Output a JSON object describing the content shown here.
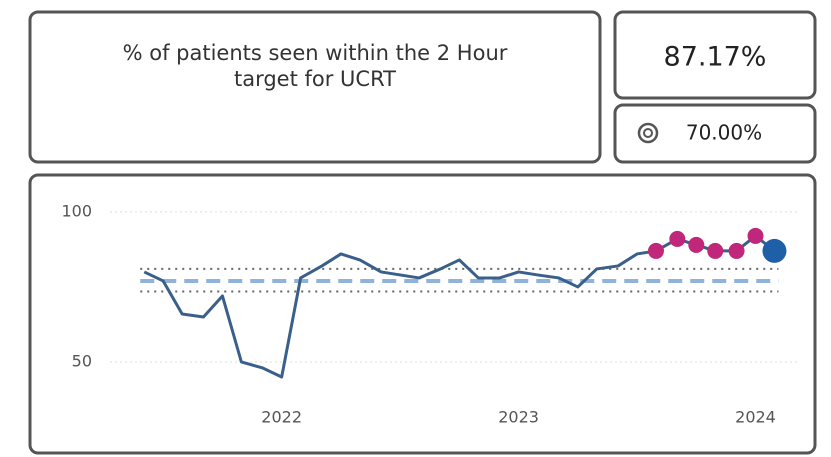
{
  "kpi": {
    "title": "% of patients seen within the 2 Hour target for UCRT",
    "value": "87.17%",
    "target": "70.00%"
  },
  "chart_data": {
    "type": "line",
    "x": [
      2021.42,
      2021.5,
      2021.58,
      2021.67,
      2021.75,
      2021.83,
      2021.92,
      2022,
      2022.08,
      2022.17,
      2022.25,
      2022.33,
      2022.42,
      2022.5,
      2022.58,
      2022.67,
      2022.75,
      2022.83,
      2022.92,
      2023,
      2023.08,
      2023.17,
      2023.25,
      2023.33,
      2023.42,
      2023.5,
      2023.58,
      2023.67,
      2023.75,
      2023.83,
      2023.92,
      2024,
      2024.08
    ],
    "values": [
      80,
      77,
      66,
      65,
      72,
      50,
      48,
      45,
      78,
      82,
      86,
      84,
      80,
      79,
      78,
      81,
      84,
      78,
      78,
      80,
      79,
      78,
      75,
      81,
      82,
      86,
      87,
      91,
      89,
      87,
      87,
      92,
      87
    ],
    "color": "#3a5f8a",
    "point_colors": [
      null,
      null,
      null,
      null,
      null,
      null,
      null,
      null,
      null,
      null,
      null,
      null,
      null,
      null,
      null,
      null,
      null,
      null,
      null,
      null,
      null,
      null,
      null,
      null,
      null,
      null,
      "#c0267a",
      "#c0267a",
      "#c0267a",
      "#c0267a",
      "#c0267a",
      "#c0267a",
      "#1f5fa8"
    ],
    "mean": 77,
    "upper_limit": 81,
    "lower_limit": 73.5,
    "xlim": [
      2020.98,
      2024.23
    ],
    "xticks": [
      2022,
      2023,
      2024
    ],
    "ylim": [
      34,
      107.3
    ],
    "yticks": [
      50,
      100
    ],
    "grid": true
  }
}
